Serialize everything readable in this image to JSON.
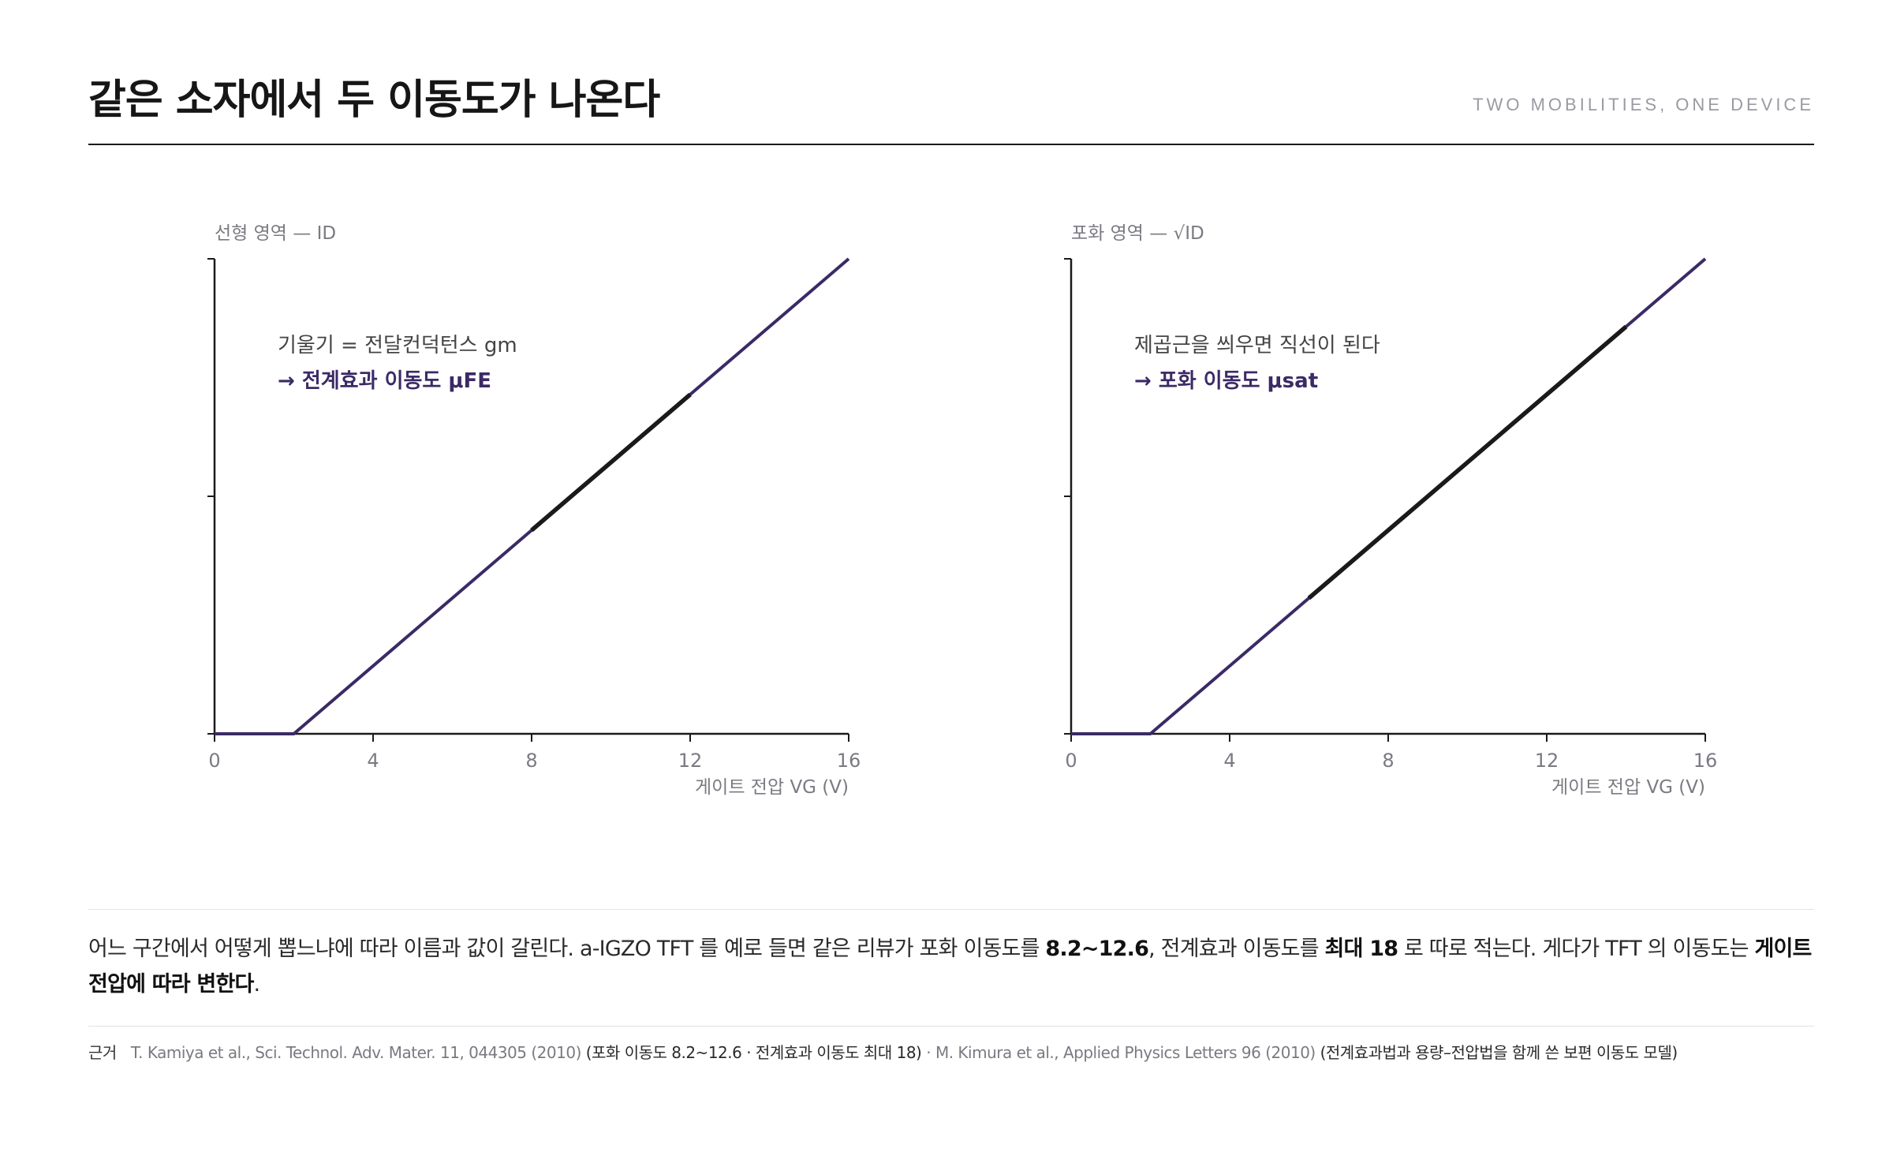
{
  "header": {
    "title": "같은 소자에서 두 이동도가 나온다",
    "subtitle": "TWO MOBILITIES, ONE DEVICE"
  },
  "colors": {
    "curve": "#3b2a66",
    "highlight": "#1a1a1a",
    "axis": "#1a1a1a",
    "muted": "#7a7a82"
  },
  "chart_data": [
    {
      "type": "line",
      "panel_label": "선형 영역 — ID",
      "xlabel": "게이트 전압 VG (V)",
      "ylabel": "ID",
      "xlim": [
        0,
        16
      ],
      "ylim": [
        0,
        1
      ],
      "xticks": [
        "0",
        "4",
        "8",
        "12",
        "16"
      ],
      "ytick_count": 3,
      "series": [
        {
          "x": [
            0,
            2,
            16
          ],
          "y": [
            0,
            0,
            1
          ]
        }
      ],
      "highlight": {
        "x_from": 8,
        "x_to": 12
      },
      "annotation": {
        "line1": "기울기 = 전달컨덕턴스 gm",
        "line2": "→ 전계효과 이동도 μFE"
      }
    },
    {
      "type": "line",
      "panel_label": "포화 영역 — √ID",
      "xlabel": "게이트 전압 VG (V)",
      "ylabel": "√ID",
      "xlim": [
        0,
        16
      ],
      "ylim": [
        0,
        1
      ],
      "xticks": [
        "0",
        "4",
        "8",
        "12",
        "16"
      ],
      "ytick_count": 3,
      "series": [
        {
          "x": [
            0,
            2,
            16
          ],
          "y": [
            0,
            0,
            1
          ]
        }
      ],
      "highlight": {
        "x_from": 6,
        "x_to": 14
      },
      "annotation": {
        "line1": "제곱근을 씌우면 직선이 된다",
        "line2": "→ 포화 이동도 μsat"
      }
    }
  ],
  "body": {
    "p1": "어느 구간에서 어떻게 뽑느냐에 따라 이름과 값이 갈린다. a-IGZO TFT 를 예로 들면 같은 리뷰가 포화 이동도를 ",
    "b1": "8.2~12.6",
    "p2": ", 전계효과 이동도를 ",
    "b2": "최대 18",
    "p3": " 로 따로 적는다. 게다가 TFT 의 이동도는 ",
    "b3": "게이트 전압에 따라 변한다",
    "p4": "."
  },
  "source": {
    "label": "근거",
    "ref1": "T. Kamiya et al., Sci. Technol. Adv. Mater. 11, 044305 (2010)",
    "note1": "(포화 이동도 8.2~12.6 · 전계효과 이동도 최대 18)",
    "sep": " · ",
    "ref2": "M. Kimura et al., Applied Physics Letters 96 (2010)",
    "note2": "(전계효과법과 용량–전압법을 함께 쓴 보편 이동도 모델)"
  }
}
